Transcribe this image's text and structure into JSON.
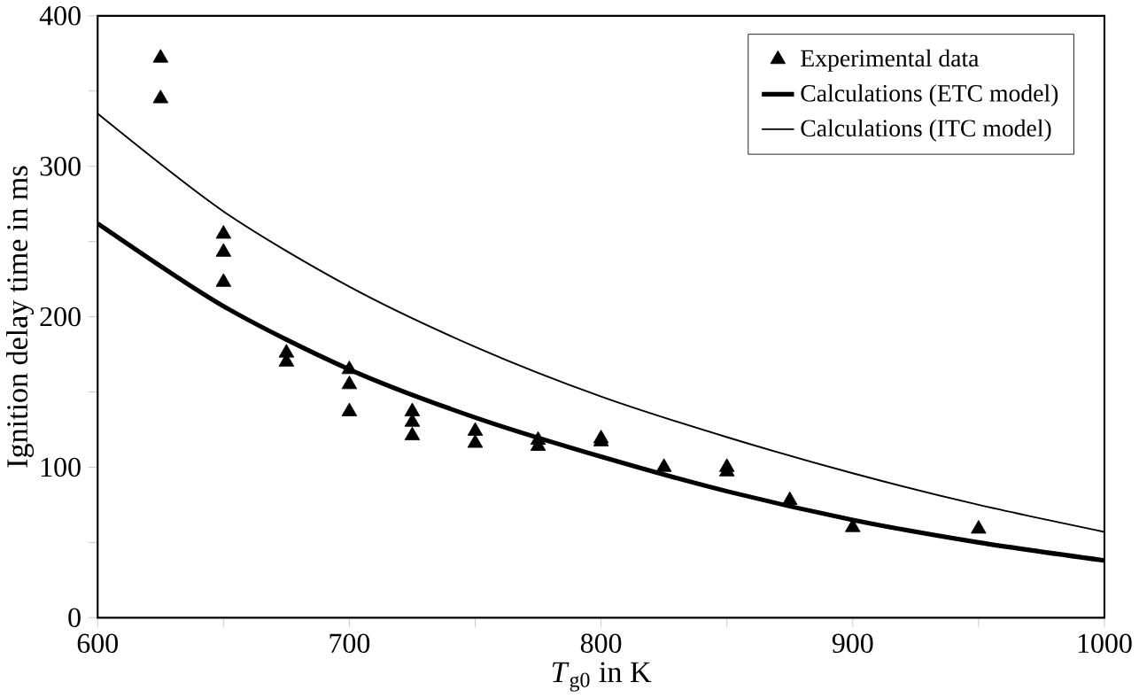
{
  "chart_data": {
    "type": "scatter",
    "xlabel": "*T*$_{g0}$ in K",
    "ylabel": "Ignition delay time in ms",
    "xlim": [
      600,
      1000
    ],
    "ylim": [
      0,
      400
    ],
    "xticks": [
      600,
      {
        "value": 650,
        "label": null
      },
      700,
      {
        "value": 750,
        "label": null
      },
      800,
      {
        "value": 850,
        "label": null
      },
      900,
      {
        "value": 950,
        "label": null
      },
      1000
    ],
    "yticks": [
      0,
      {
        "value": 50,
        "label": null
      },
      100,
      {
        "value": 150,
        "label": null
      },
      200,
      {
        "value": 250,
        "label": null
      },
      300,
      {
        "value": 350,
        "label": null
      },
      400
    ],
    "grid": false,
    "legend": "top right",
    "series": [
      {
        "name": "Experimental data",
        "marker": "triangle",
        "color": "#000000",
        "x": [
          625,
          625,
          650,
          650,
          650,
          675,
          675,
          700,
          700,
          700,
          725,
          725,
          725,
          750,
          750,
          775,
          775,
          800,
          800,
          825,
          850,
          850,
          875,
          900,
          950
        ],
        "values": [
          372,
          345,
          255,
          243,
          223,
          176,
          170,
          165,
          155,
          137,
          137,
          130,
          121,
          124,
          116,
          118,
          114,
          119,
          117,
          100,
          100,
          97,
          78,
          60,
          59
        ]
      },
      {
        "name": "Calculations (ETC model)",
        "type": "line",
        "marker": "none",
        "color": "#000000",
        "x": [
          600,
          650,
          700,
          750,
          800,
          850,
          900,
          950,
          1000
        ],
        "values": [
          262,
          207,
          165,
          133,
          107,
          84,
          65,
          50,
          38
        ]
      },
      {
        "name": "Calculations (ITC model)",
        "type": "line",
        "marker": "none",
        "color": "#000000",
        "x": [
          600,
          650,
          700,
          750,
          800,
          850,
          900,
          950,
          1000
        ],
        "values": [
          335,
          270,
          220,
          180,
          147,
          120,
          96,
          75,
          57
        ]
      }
    ]
  }
}
